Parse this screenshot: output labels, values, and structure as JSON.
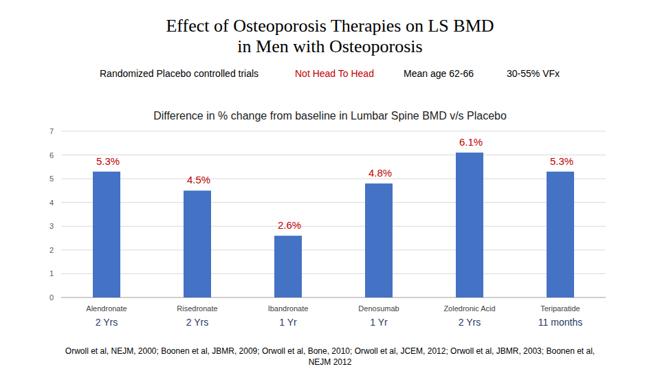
{
  "chart_data": {
    "type": "bar",
    "title": [
      "Effect of Osteoporosis Therapies on LS BMD",
      "in Men with Osteoporosis"
    ],
    "header_notes": [
      "Randomized Placebo controlled trials",
      "Not Head To Head",
      "Mean age 62-66",
      "30-55% VFx"
    ],
    "subtitle": "Difference in % change from baseline in Lumbar Spine BMD v/s Placebo",
    "categories": [
      "Alendronate",
      "Risedronate",
      "Ibandronate",
      "Denosumab",
      "Zoledronic Acid",
      "Teriparatide"
    ],
    "durations": [
      "2 Yrs",
      "2 Yrs",
      "1 Yr",
      "1 Yr",
      "2 Yrs",
      "11 months"
    ],
    "values": [
      5.3,
      4.5,
      2.6,
      4.8,
      6.1,
      5.3
    ],
    "value_labels": [
      "5.3%",
      "4.5%",
      "2.6%",
      "4.8%",
      "6.1%",
      "5.3%"
    ],
    "data_labels": true,
    "color": "#4472c4",
    "ylim": [
      0,
      7
    ],
    "yticks": [
      0,
      1,
      2,
      3,
      4,
      5,
      6,
      7
    ],
    "grid": true,
    "source": [
      "Orwoll et al, NEJM, 2000; Boonen et al, JBMR, 2009; Orwoll et al, Bone, 2010; Orwoll et al, JCEM, 2012; Orwoll et al, JBMR, 2003; Boonen et al,",
      "NEJM 2012"
    ]
  }
}
